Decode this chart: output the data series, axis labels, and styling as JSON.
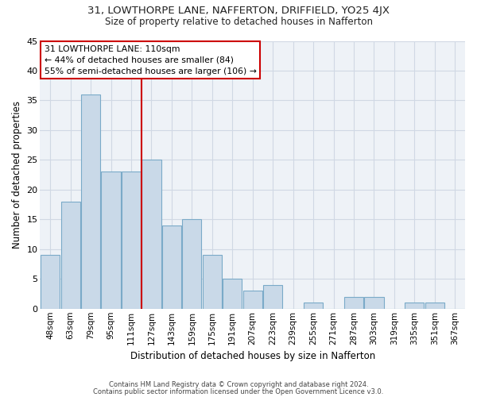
{
  "title": "31, LOWTHORPE LANE, NAFFERTON, DRIFFIELD, YO25 4JX",
  "subtitle": "Size of property relative to detached houses in Nafferton",
  "xlabel": "Distribution of detached houses by size in Nafferton",
  "ylabel": "Number of detached properties",
  "bar_color": "#c9d9e8",
  "bar_edgecolor": "#7aaac8",
  "bg_color": "#eef2f7",
  "grid_color": "#d0d8e4",
  "categories": [
    "48sqm",
    "63sqm",
    "79sqm",
    "95sqm",
    "111sqm",
    "127sqm",
    "143sqm",
    "159sqm",
    "175sqm",
    "191sqm",
    "207sqm",
    "223sqm",
    "239sqm",
    "255sqm",
    "271sqm",
    "287sqm",
    "303sqm",
    "319sqm",
    "335sqm",
    "351sqm",
    "367sqm"
  ],
  "values": [
    9,
    18,
    36,
    23,
    23,
    25,
    14,
    15,
    9,
    5,
    3,
    4,
    0,
    1,
    0,
    2,
    2,
    0,
    1,
    1,
    0
  ],
  "vline_x": 4.5,
  "vline_color": "#cc0000",
  "annotation_title": "31 LOWTHORPE LANE: 110sqm",
  "annotation_line1": "← 44% of detached houses are smaller (84)",
  "annotation_line2": "55% of semi-detached houses are larger (106) →",
  "annotation_box_color": "#ffffff",
  "annotation_box_edgecolor": "#cc0000",
  "ylim": [
    0,
    45
  ],
  "yticks": [
    0,
    5,
    10,
    15,
    20,
    25,
    30,
    35,
    40,
    45
  ],
  "footer1": "Contains HM Land Registry data © Crown copyright and database right 2024.",
  "footer2": "Contains public sector information licensed under the Open Government Licence v3.0."
}
